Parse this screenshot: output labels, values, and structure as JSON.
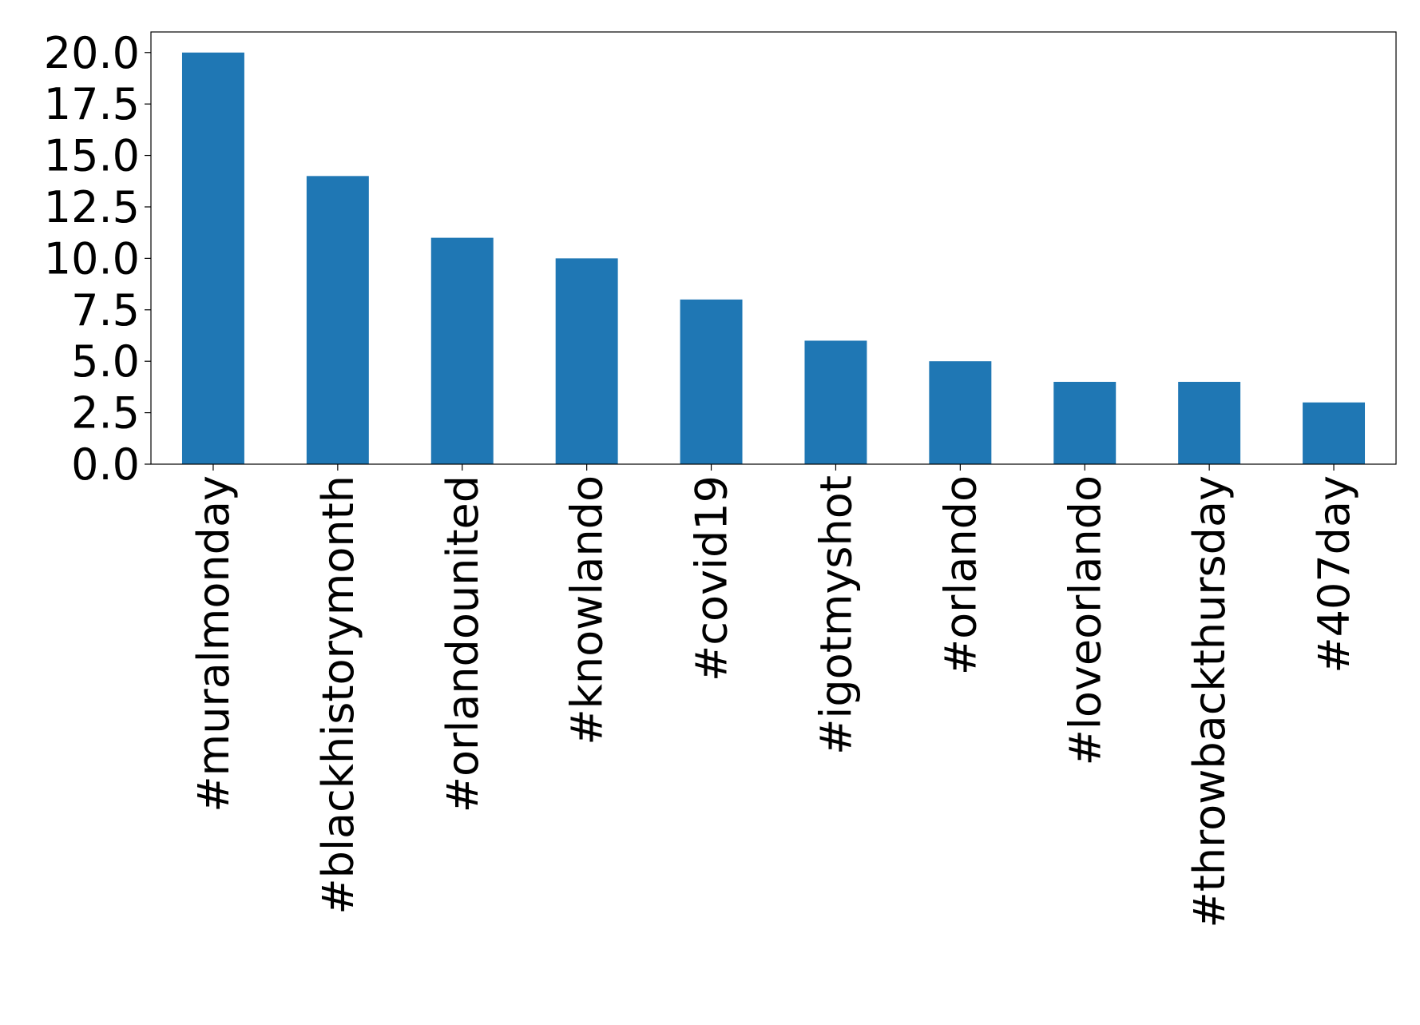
{
  "chart_data": {
    "type": "bar",
    "categories": [
      "#muralmonday",
      "#blackhistorymonth",
      "#orlandounited",
      "#knowlando",
      "#covid19",
      "#igotmyshot",
      "#orlando",
      "#loveorlando",
      "#throwbackthursday",
      "#407day"
    ],
    "values": [
      20,
      14,
      11,
      10,
      8,
      6,
      5,
      4,
      4,
      3
    ],
    "color": "#1f77b4",
    "ylim": [
      0,
      21
    ],
    "yticks": [
      {
        "value": 0,
        "label": "0.0"
      },
      2.5,
      {
        "value": 5,
        "label": "5.0"
      },
      7.5,
      {
        "value": 10,
        "label": "10.0"
      },
      12.5,
      {
        "value": 15,
        "label": "15.0"
      },
      17.5,
      {
        "value": 20,
        "label": "20.0"
      }
    ],
    "grid": false
  }
}
